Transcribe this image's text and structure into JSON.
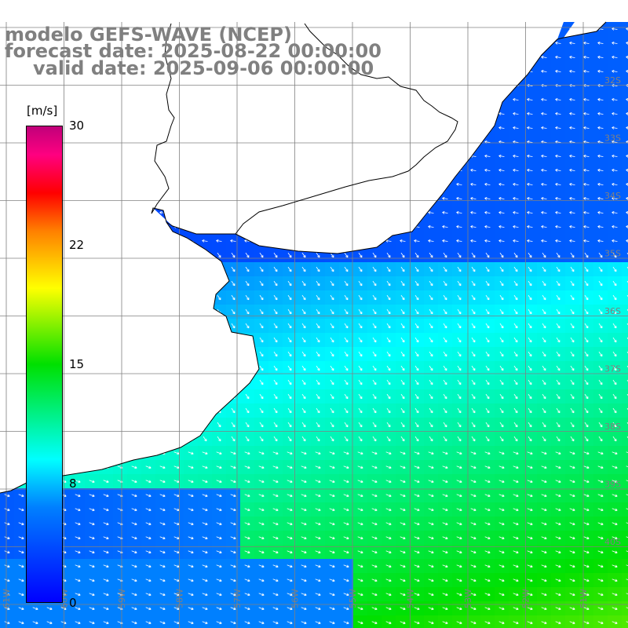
{
  "title": {
    "model": "modelo GEFS-WAVE (NCEP)",
    "forecast": "forecast date: 2025-08-22 00:00:00",
    "valid": "valid date: 2025-09-06 00:00:00"
  },
  "legend": {
    "unit": "[m/s]",
    "ticks": [
      {
        "label": "30",
        "value": 30
      },
      {
        "label": "22",
        "value": 22
      },
      {
        "label": "15",
        "value": 15
      },
      {
        "label": "8",
        "value": 8
      },
      {
        "label": "0",
        "value": 0
      }
    ],
    "colors": [
      "#0000ff",
      "#0080ff",
      "#00ffff",
      "#00e000",
      "#ffff00",
      "#ff8000",
      "#ff0000",
      "#ff0080",
      "#c0007a"
    ]
  },
  "map": {
    "lat_labels": [
      "32S",
      "33S",
      "34S",
      "35S",
      "36S",
      "37S",
      "38S",
      "39S",
      "40S"
    ],
    "lon_labels": [
      "61W",
      "60W",
      "59W",
      "58W",
      "57W",
      "56W",
      "55W",
      "54W",
      "53W",
      "52W",
      "51W"
    ],
    "land_color": "#ffffff",
    "grid_color": "#808080",
    "coast_color": "#000000"
  }
}
